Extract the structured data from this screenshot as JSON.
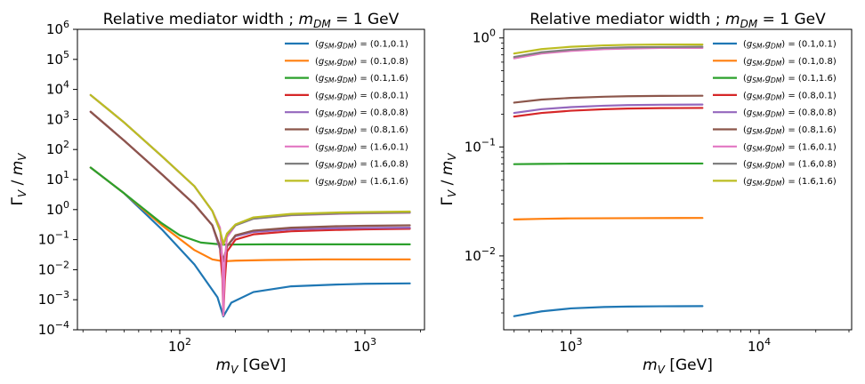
{
  "chart_data": [
    {
      "type": "line",
      "title": "Relative mediator width ; m_DM = 1 GeV",
      "title_main": "Relative mediator width ; ",
      "title_sym": "m",
      "title_sub": "DM",
      "title_tail": " = 1 GeV",
      "xlabel_sym": "m",
      "xlabel_sub": "V",
      "xlabel_unit": " [GeV]",
      "ylabel_num": "Γ",
      "ylabel_num_sub": "V",
      "ylabel_den": "m",
      "ylabel_den_sub": "V",
      "xscale": "log",
      "yscale": "log",
      "xlim": [
        28,
        2100
      ],
      "ylim": [
        0.0001,
        1000000
      ],
      "xticks": [
        {
          "value": 100,
          "base": "10",
          "exp": "2"
        },
        {
          "value": 1000,
          "base": "10",
          "exp": "3"
        }
      ],
      "yticks": [
        {
          "value": 0.0001,
          "base": "10",
          "exp": "−4"
        },
        {
          "value": 0.001,
          "base": "10",
          "exp": "−3"
        },
        {
          "value": 0.01,
          "base": "10",
          "exp": "−2"
        },
        {
          "value": 0.1,
          "base": "10",
          "exp": "−1"
        },
        {
          "value": 1,
          "base": "10",
          "exp": "0"
        },
        {
          "value": 10,
          "base": "10",
          "exp": "1"
        },
        {
          "value": 100,
          "base": "10",
          "exp": "2"
        },
        {
          "value": 1000,
          "base": "10",
          "exp": "3"
        },
        {
          "value": 10000,
          "base": "10",
          "exp": "4"
        },
        {
          "value": 100000,
          "base": "10",
          "exp": "5"
        },
        {
          "value": 1000000,
          "base": "10",
          "exp": "6"
        }
      ],
      "legend_position": "top-right",
      "series": [
        {
          "name": "(gSM,gDM) = (0.1,0.1)",
          "pair": "(0.1,0.1)",
          "color": "#1f77b4",
          "x": [
            33,
            50,
            80,
            120,
            160,
            172,
            190,
            250,
            400,
            700,
            1000,
            1750
          ],
          "y": [
            25,
            3.5,
            0.22,
            0.015,
            0.0012,
            0.00028,
            0.0008,
            0.0018,
            0.0028,
            0.0032,
            0.0034,
            0.0035
          ]
        },
        {
          "name": "(gSM,gDM) = (0.1,0.8)",
          "pair": "(0.1,0.8)",
          "color": "#ff7f0e",
          "x": [
            33,
            50,
            80,
            120,
            150,
            172,
            200,
            300,
            600,
            1000,
            1750
          ],
          "y": [
            25,
            3.5,
            0.3,
            0.045,
            0.022,
            0.019,
            0.02,
            0.021,
            0.022,
            0.022,
            0.022
          ]
        },
        {
          "name": "(gSM,gDM) = (0.1,1.6)",
          "pair": "(0.1,1.6)",
          "color": "#2ca02c",
          "x": [
            33,
            50,
            80,
            100,
            130,
            172,
            200,
            300,
            600,
            1000,
            1750
          ],
          "y": [
            25,
            3.5,
            0.35,
            0.14,
            0.08,
            0.068,
            0.069,
            0.07,
            0.07,
            0.07,
            0.07
          ]
        },
        {
          "name": "(gSM,gDM) = (0.8,0.1)",
          "pair": "(0.8,0.1)",
          "color": "#d62728",
          "x": [
            33,
            50,
            80,
            120,
            150,
            165,
            170,
            172,
            175,
            180,
            200,
            250,
            400,
            700,
            1000,
            1750
          ],
          "y": [
            1800,
            200,
            15,
            1.5,
            0.3,
            0.05,
            0.005,
            0.0003,
            0.004,
            0.04,
            0.1,
            0.15,
            0.19,
            0.21,
            0.22,
            0.23
          ]
        },
        {
          "name": "(gSM,gDM) = (0.8,0.8)",
          "pair": "(0.8,0.8)",
          "color": "#9467bd",
          "x": [
            33,
            50,
            80,
            120,
            150,
            165,
            172,
            180,
            200,
            250,
            400,
            700,
            1000,
            1750
          ],
          "y": [
            1800,
            200,
            15,
            1.5,
            0.3,
            0.05,
            0.019,
            0.06,
            0.13,
            0.18,
            0.22,
            0.24,
            0.245,
            0.25
          ]
        },
        {
          "name": "(gSM,gDM) = (0.8,1.6)",
          "pair": "(0.8,1.6)",
          "color": "#8c564b",
          "x": [
            33,
            50,
            80,
            120,
            150,
            165,
            172,
            180,
            200,
            250,
            400,
            700,
            1000,
            1750
          ],
          "y": [
            1800,
            200,
            15,
            1.5,
            0.3,
            0.06,
            0.02,
            0.06,
            0.14,
            0.2,
            0.25,
            0.28,
            0.29,
            0.3
          ]
        },
        {
          "name": "(gSM,gDM) = (1.6,0.1)",
          "pair": "(1.6,0.1)",
          "color": "#e377c2",
          "x": [
            33,
            50,
            80,
            120,
            150,
            165,
            170,
            172,
            175,
            180,
            200,
            250,
            400,
            700,
            1000,
            1750
          ],
          "y": [
            6500,
            800,
            60,
            6,
            0.9,
            0.25,
            0.02,
            0.0003,
            0.02,
            0.12,
            0.3,
            0.5,
            0.65,
            0.72,
            0.75,
            0.78
          ]
        },
        {
          "name": "(gSM,gDM) = (1.6,0.8)",
          "pair": "(1.6,0.8)",
          "color": "#7f7f7f",
          "x": [
            33,
            50,
            80,
            120,
            150,
            165,
            172,
            180,
            200,
            250,
            400,
            700,
            1000,
            1750
          ],
          "y": [
            6500,
            800,
            60,
            6,
            0.9,
            0.2,
            0.07,
            0.15,
            0.3,
            0.5,
            0.66,
            0.74,
            0.77,
            0.8
          ]
        },
        {
          "name": "(gSM,gDM) = (1.6,1.6)",
          "pair": "(1.6,1.6)",
          "color": "#bcbd22",
          "x": [
            33,
            50,
            80,
            120,
            150,
            165,
            172,
            180,
            200,
            250,
            400,
            700,
            1000,
            1750
          ],
          "y": [
            6500,
            800,
            60,
            6,
            0.9,
            0.2,
            0.07,
            0.16,
            0.32,
            0.55,
            0.72,
            0.8,
            0.83,
            0.86
          ]
        }
      ]
    },
    {
      "type": "line",
      "title": "Relative mediator width ; m_DM = 1 GeV",
      "title_main": "Relative mediator width ; ",
      "title_sym": "m",
      "title_sub": "DM",
      "title_tail": " = 1 GeV",
      "xlabel_sym": "m",
      "xlabel_sub": "V",
      "xlabel_unit": " [GeV]",
      "ylabel_num": "Γ",
      "ylabel_num_sub": "V",
      "ylabel_den": "m",
      "ylabel_den_sub": "V",
      "xscale": "log",
      "yscale": "log",
      "xlim": [
        440,
        31000
      ],
      "ylim": [
        0.0021,
        1.2
      ],
      "xticks": [
        {
          "value": 1000,
          "base": "10",
          "exp": "3"
        },
        {
          "value": 10000,
          "base": "10",
          "exp": "4"
        }
      ],
      "yticks": [
        {
          "value": 0.01,
          "base": "10",
          "exp": "−2"
        },
        {
          "value": 0.1,
          "base": "10",
          "exp": "−1"
        },
        {
          "value": 1,
          "base": "10",
          "exp": "0"
        }
      ],
      "legend_position": "top-right",
      "series": [
        {
          "name": "(gSM,gDM) = (0.1,0.1)",
          "pair": "(0.1,0.1)",
          "color": "#1f77b4",
          "x": [
            500,
            700,
            1000,
            1500,
            2000,
            3000,
            5000
          ],
          "y": [
            0.0028,
            0.0031,
            0.0033,
            0.0034,
            0.00343,
            0.00345,
            0.00346
          ]
        },
        {
          "name": "(gSM,gDM) = (0.1,0.8)",
          "pair": "(0.1,0.8)",
          "color": "#ff7f0e",
          "x": [
            500,
            700,
            1000,
            2000,
            5000
          ],
          "y": [
            0.0216,
            0.0219,
            0.0221,
            0.0222,
            0.0223
          ]
        },
        {
          "name": "(gSM,gDM) = (0.1,1.6)",
          "pair": "(0.1,1.6)",
          "color": "#2ca02c",
          "x": [
            500,
            700,
            1000,
            2000,
            5000
          ],
          "y": [
            0.0695,
            0.0699,
            0.0702,
            0.0704,
            0.0705
          ]
        },
        {
          "name": "(gSM,gDM) = (0.8,0.1)",
          "pair": "(0.8,0.1)",
          "color": "#d62728",
          "x": [
            500,
            700,
            1000,
            1500,
            2000,
            3000,
            5000
          ],
          "y": [
            0.19,
            0.205,
            0.215,
            0.222,
            0.225,
            0.227,
            0.228
          ]
        },
        {
          "name": "(gSM,gDM) = (0.8,0.8)",
          "pair": "(0.8,0.8)",
          "color": "#9467bd",
          "x": [
            500,
            700,
            1000,
            1500,
            2000,
            3000,
            5000
          ],
          "y": [
            0.205,
            0.222,
            0.232,
            0.239,
            0.242,
            0.244,
            0.245
          ]
        },
        {
          "name": "(gSM,gDM) = (0.8,1.6)",
          "pair": "(0.8,1.6)",
          "color": "#8c564b",
          "x": [
            500,
            700,
            1000,
            1500,
            2000,
            3000,
            5000
          ],
          "y": [
            0.255,
            0.272,
            0.282,
            0.289,
            0.292,
            0.294,
            0.295
          ]
        },
        {
          "name": "(gSM,gDM) = (1.6,0.1)",
          "pair": "(1.6,0.1)",
          "color": "#e377c2",
          "x": [
            500,
            700,
            1000,
            1500,
            2000,
            3000,
            5000
          ],
          "y": [
            0.65,
            0.72,
            0.76,
            0.79,
            0.8,
            0.81,
            0.81
          ]
        },
        {
          "name": "(gSM,gDM) = (1.6,0.8)",
          "pair": "(1.6,0.8)",
          "color": "#7f7f7f",
          "x": [
            500,
            700,
            1000,
            1500,
            2000,
            3000,
            5000
          ],
          "y": [
            0.67,
            0.74,
            0.78,
            0.81,
            0.82,
            0.825,
            0.83
          ]
        },
        {
          "name": "(gSM,gDM) = (1.6,1.6)",
          "pair": "(1.6,1.6)",
          "color": "#bcbd22",
          "x": [
            500,
            700,
            1000,
            1500,
            2000,
            3000,
            5000
          ],
          "y": [
            0.72,
            0.79,
            0.83,
            0.855,
            0.865,
            0.87,
            0.87
          ]
        }
      ]
    }
  ]
}
